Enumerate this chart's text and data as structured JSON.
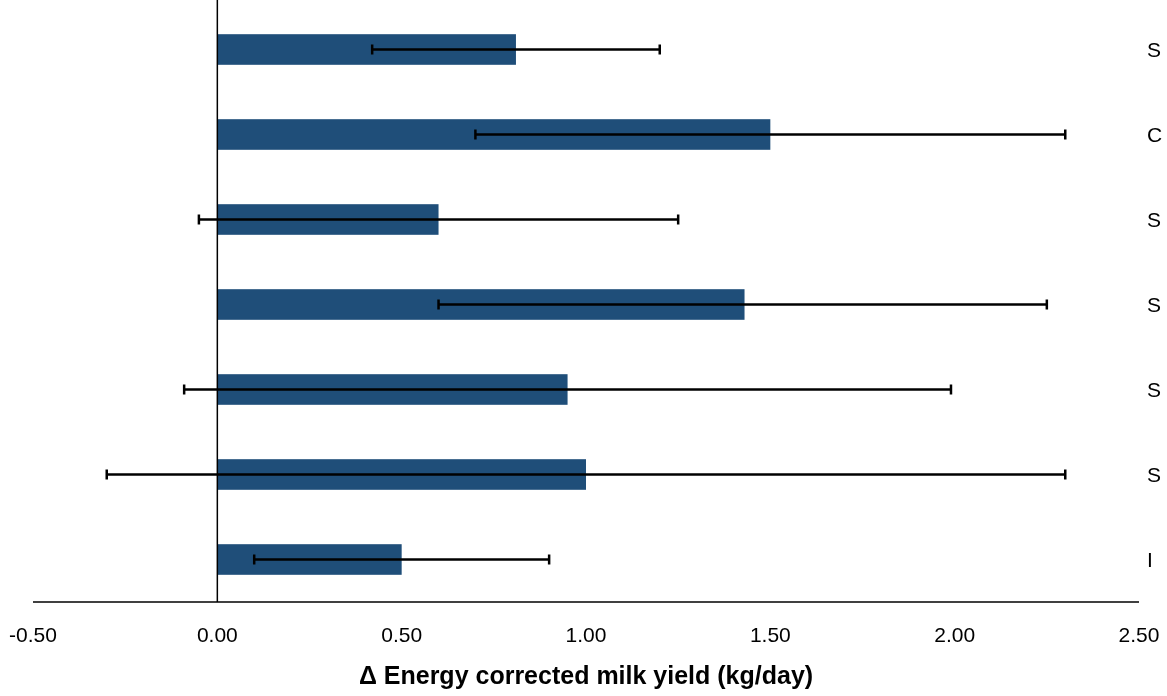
{
  "chart_data": {
    "type": "bar",
    "orientation": "horizontal",
    "xlabel": "Δ Energy corrected milk yield (kg/day)",
    "categories": [
      "S",
      "C",
      "S",
      "S",
      "S",
      "S",
      "I"
    ],
    "values": [
      0.81,
      1.5,
      0.6,
      1.43,
      0.95,
      1.0,
      0.5
    ],
    "errors": [
      [
        0.42,
        1.2
      ],
      [
        0.7,
        2.3
      ],
      [
        -0.05,
        1.25
      ],
      [
        0.6,
        2.25
      ],
      [
        -0.09,
        1.99
      ],
      [
        -0.3,
        2.3
      ],
      [
        0.1,
        0.9
      ]
    ],
    "color": "#1f4e79",
    "xlim": [
      -0.5,
      2.5
    ],
    "xticks": [
      {
        "value": -0.5,
        "label": "-0.50"
      },
      {
        "value": 0,
        "label": "0.00"
      },
      {
        "value": 0.5,
        "label": "0.50"
      },
      {
        "value": 1,
        "label": "1.00"
      },
      {
        "value": 1.5,
        "label": "1.50"
      },
      {
        "value": 2,
        "label": "2.00"
      },
      {
        "value": 2.5,
        "label": "2.50"
      }
    ]
  }
}
